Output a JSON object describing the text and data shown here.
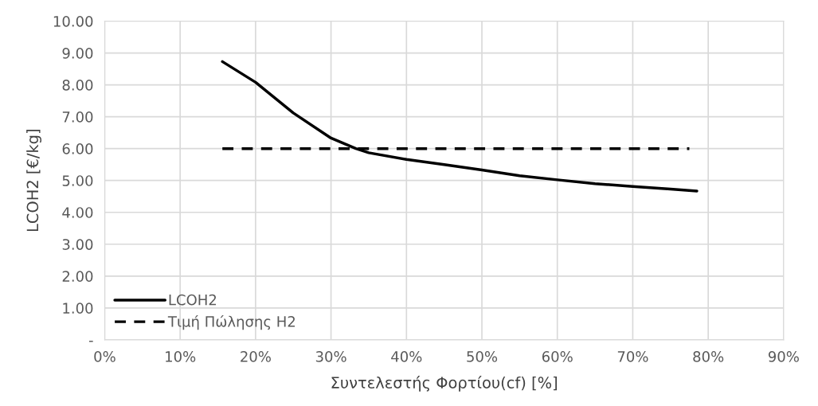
{
  "chart_data": {
    "type": "line",
    "xlabel": "Συντελεστής Φορτίου(cf) [%]",
    "ylabel": "LCOH2 [€/kg]",
    "xlim": [
      0,
      90
    ],
    "xticks": [
      {
        "value": 0,
        "label": "0%"
      },
      {
        "value": 10,
        "label": "10%"
      },
      {
        "value": 20,
        "label": "20%"
      },
      {
        "value": 30,
        "label": "30%"
      },
      {
        "value": 40,
        "label": "40%"
      },
      {
        "value": 50,
        "label": "50%"
      },
      {
        "value": 60,
        "label": "60%"
      },
      {
        "value": 70,
        "label": "70%"
      },
      {
        "value": 80,
        "label": "80%"
      },
      {
        "value": 90,
        "label": "90%"
      }
    ],
    "ylim": [
      0,
      10
    ],
    "yticks": [
      {
        "value": 0,
        "label": "-"
      },
      {
        "value": 1,
        "label": "1.00"
      },
      {
        "value": 2,
        "label": "2.00"
      },
      {
        "value": 3,
        "label": "3.00"
      },
      {
        "value": 4,
        "label": "4.00"
      },
      {
        "value": 5,
        "label": "5.00"
      },
      {
        "value": 6,
        "label": "6.00"
      },
      {
        "value": 7,
        "label": "7.00"
      },
      {
        "value": 8,
        "label": "8.00"
      },
      {
        "value": 9,
        "label": "9.00"
      },
      {
        "value": 10,
        "label": "10.00"
      }
    ],
    "series": [
      {
        "name": "LCOH2",
        "color": "#000000",
        "line_style": "solid",
        "x": [
          15.6,
          20,
          25,
          30,
          33.3,
          35,
          40,
          45,
          50,
          55,
          60,
          65,
          70,
          75,
          78.5
        ],
        "values": [
          8.73,
          8.08,
          7.12,
          6.33,
          6.0,
          5.87,
          5.66,
          5.5,
          5.33,
          5.15,
          5.02,
          4.9,
          4.81,
          4.73,
          4.67
        ]
      },
      {
        "name": "Τιμή Πώλησης H2",
        "color": "#000000",
        "line_style": "dashed",
        "x": [
          15.6,
          77.5
        ],
        "values": [
          6.0,
          6.0
        ]
      }
    ],
    "grid": true,
    "legend": "bottom left",
    "marker": "none"
  }
}
